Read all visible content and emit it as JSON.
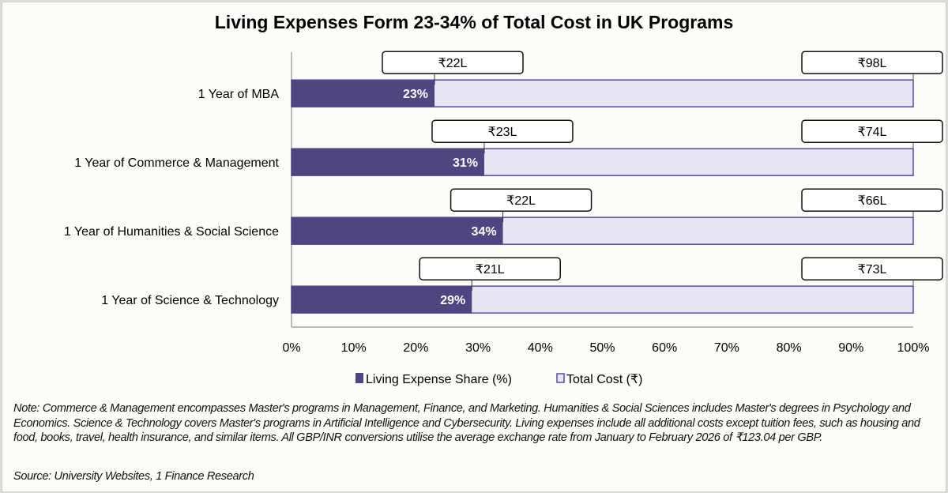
{
  "chart_data": {
    "type": "bar",
    "orientation": "horizontal",
    "stacked": true,
    "title": "Living Expenses Form 23-34% of Total Cost in UK Programs",
    "categories": [
      "1 Year of MBA",
      "1 Year of Commerce & Management",
      "1 Year of Humanities & Social Science",
      "1 Year of Science & Technology"
    ],
    "series": [
      {
        "name": "Living Expense Share (%)",
        "color": "#4f4580",
        "values": [
          23,
          31,
          34,
          29
        ],
        "value_labels": [
          "23%",
          "31%",
          "34%",
          "29%"
        ]
      },
      {
        "name": "Total Cost (₹)",
        "color": "#e8e6f5",
        "border": "#5a48a8",
        "values": [
          100,
          100,
          100,
          100
        ]
      }
    ],
    "living_cost_callouts": [
      "₹22L",
      "₹23L",
      "₹22L",
      "₹21L"
    ],
    "total_cost_callouts": [
      "₹98L",
      "₹74L",
      "₹66L",
      "₹73L"
    ],
    "xlim": [
      0,
      100
    ],
    "xticks": [
      "0%",
      "10%",
      "20%",
      "30%",
      "40%",
      "50%",
      "60%",
      "70%",
      "80%",
      "90%",
      "100%"
    ],
    "xlabel": "",
    "ylabel": "",
    "grid": false,
    "legend": "bottom"
  },
  "note": "Note: Commerce & Management encompasses Master's programs in Management, Finance, and Marketing. Humanities & Social Sciences includes Master's degrees in Psychology and Economics. Science & Technology covers Master's programs in Artificial Intelligence and Cybersecurity. Living expenses include all additional costs except tuition fees, such as housing and food, books, travel, health insurance, and similar items. All GBP/INR conversions utilise the average exchange rate from January to February 2026 of ₹123.04 per GBP.",
  "source": "Source: University Websites, 1 Finance Research"
}
